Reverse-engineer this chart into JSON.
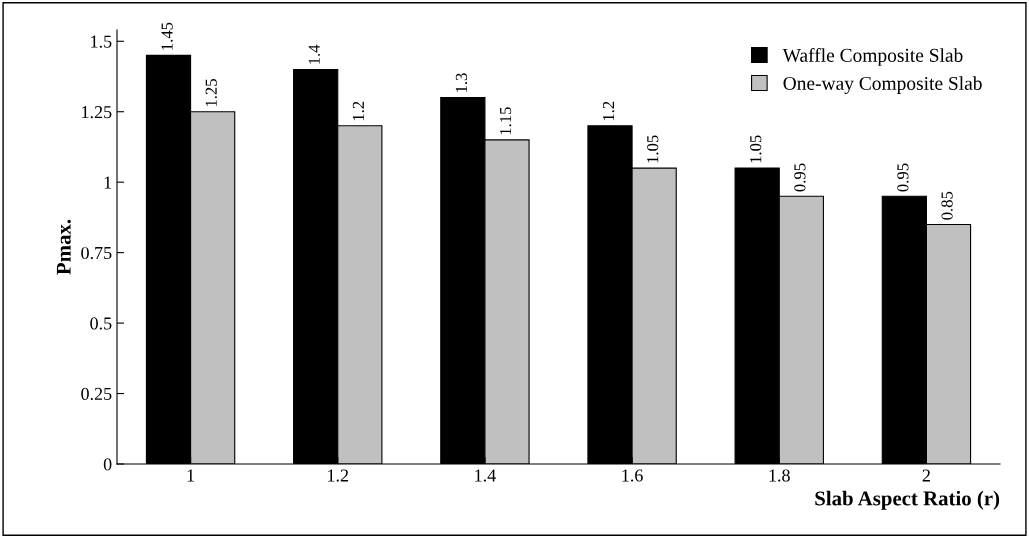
{
  "chart_data": {
    "type": "bar",
    "xlabel": "Slab Aspect Ratio (r)",
    "ylabel": "Pmax.",
    "categories": [
      "1",
      "1.2",
      "1.4",
      "1.6",
      "1.8",
      "2"
    ],
    "series": [
      {
        "name": "Waffle Composite Slab",
        "color": "#000000",
        "values": [
          1.45,
          1.4,
          1.3,
          1.2,
          1.05,
          0.95
        ]
      },
      {
        "name": "One-way Composite Slab",
        "color": "#c0c0c0",
        "values": [
          1.25,
          1.2,
          1.15,
          1.05,
          0.95,
          0.85
        ]
      }
    ],
    "ylim": [
      0,
      1.54
    ],
    "yticks": [
      0,
      0.25,
      0.5,
      0.75,
      1,
      1.25,
      1.5
    ],
    "data_labels": true,
    "legend": "top right",
    "grid": false
  }
}
